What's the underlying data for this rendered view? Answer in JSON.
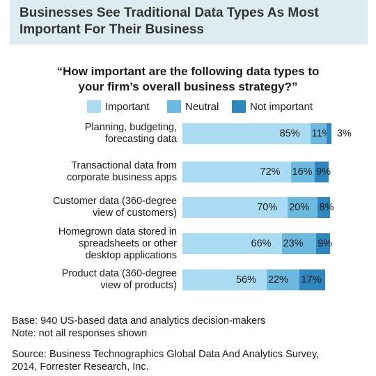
{
  "header": {
    "title": "Businesses See Traditional Data Types As Most Important For Their Business"
  },
  "colors": {
    "important": "#a9dcf2",
    "neutral": "#6cb9e0",
    "not_important": "#2e86bf",
    "header_bg": "#dcecf1"
  },
  "chart_data": {
    "type": "bar",
    "orientation": "horizontal",
    "stacked": true,
    "title": "“How important are the following data types to\nyour firm’s overall business strategy?”",
    "legend_position": "top",
    "categories": [
      "Planning, budgeting,\nforecasting data",
      "Transactional data from\ncorporate business apps",
      "Customer data (360-degree\nview of customers)",
      "Homegrown data stored in\nspreadsheets or other\ndesktop applications",
      "Product data (360-degree\nview of products)"
    ],
    "series": [
      {
        "name": "Important",
        "values": [
          85,
          72,
          70,
          66,
          56
        ]
      },
      {
        "name": "Neutral",
        "values": [
          11,
          16,
          20,
          23,
          22
        ]
      },
      {
        "name": "Not important",
        "values": [
          3,
          9,
          8,
          9,
          17
        ]
      }
    ],
    "unit": "%",
    "xlim": [
      0,
      100
    ]
  },
  "notes": {
    "base": "Base: 940 US-based data and analytics decision-makers\nNote: not all responses shown",
    "source": "Source: Business Technographics Global Data And Analytics Survey,\n2014, Forrester Research, Inc."
  }
}
